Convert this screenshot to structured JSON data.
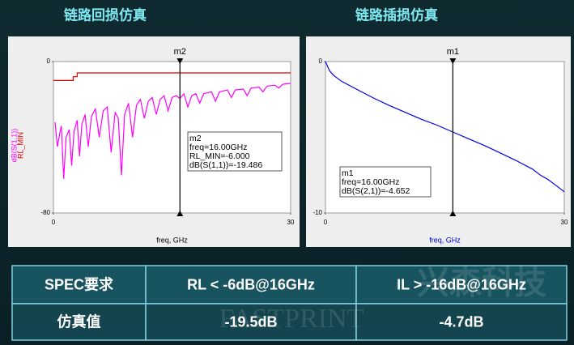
{
  "chart_data": [
    {
      "type": "line",
      "title": "链路回损仿真",
      "xlabel": "freq, GHz",
      "xlim": [
        0,
        30
      ],
      "xticks": [
        0,
        30
      ],
      "ylim": [
        -80,
        0
      ],
      "yticks": [
        -80,
        0
      ],
      "series": [
        {
          "name": "dB(S(1,1))",
          "color": "#ff00ff",
          "x": [
            0.2,
            0.5,
            0.8,
            1.0,
            1.3,
            1.6,
            2.0,
            2.3,
            2.6,
            3.0,
            3.3,
            3.6,
            4.0,
            4.4,
            4.8,
            5.3,
            5.8,
            6.3,
            6.8,
            7.3,
            7.8,
            8.2,
            8.6,
            9.0,
            9.5,
            10.0,
            10.5,
            11,
            11.5,
            12,
            12.5,
            13,
            13.5,
            14,
            14.5,
            15,
            15.5,
            16,
            16.5,
            17,
            17.5,
            18,
            18.5,
            19,
            20,
            20.5,
            21,
            22,
            22.5,
            23,
            24,
            24.5,
            25,
            26,
            26.5,
            27,
            28,
            28.5,
            29,
            30
          ],
          "values": [
            -32,
            -45,
            -38,
            -34,
            -62,
            -40,
            -36,
            -55,
            -37,
            -31,
            -50,
            -33,
            -28,
            -45,
            -29,
            -25,
            -40,
            -26,
            -24,
            -48,
            -27,
            -30,
            -60,
            -28,
            -22,
            -40,
            -23,
            -20,
            -30,
            -21,
            -19,
            -28,
            -20,
            -18,
            -26,
            -19,
            -18,
            -19.486,
            -17,
            -24,
            -18,
            -17,
            -22,
            -17,
            -16,
            -21,
            -16,
            -15,
            -19,
            -15,
            -14.5,
            -18,
            -14,
            -13.5,
            -16,
            -13,
            -12.5,
            -14,
            -12,
            -11.5
          ]
        },
        {
          "name": "RL_MIN",
          "color": "#dd0000",
          "x": [
            0,
            2.5,
            2.5,
            3,
            3,
            30
          ],
          "values": [
            -10,
            -10,
            -8,
            -8,
            -6,
            -6
          ]
        }
      ],
      "marker": {
        "label": "m2",
        "x": 16
      },
      "annotation": [
        "m2",
        "freq=16.00GHz",
        "RL_MIN=-6.000",
        "dB(S(1,1))=-19.486"
      ]
    },
    {
      "type": "line",
      "title": "链路插损仿真",
      "xlabel": "freq, GHz",
      "xlabel_color": "#0000cc",
      "xlim": [
        0,
        30
      ],
      "xticks": [
        0,
        30
      ],
      "ylim": [
        -10,
        0
      ],
      "yticks": [
        -10,
        0
      ],
      "series": [
        {
          "name": "dB(S(2,1))",
          "color": "#0000ee",
          "x": [
            0,
            0.5,
            1,
            2,
            4,
            6,
            8,
            10,
            12,
            14,
            16,
            18,
            20,
            22,
            24,
            26,
            27,
            28,
            29,
            30
          ],
          "values": [
            0,
            -0.6,
            -0.9,
            -1.3,
            -1.85,
            -2.4,
            -2.9,
            -3.35,
            -3.8,
            -4.2,
            -4.652,
            -5.1,
            -5.55,
            -6.05,
            -6.55,
            -7.1,
            -7.5,
            -7.8,
            -8.2,
            -8.6
          ]
        }
      ],
      "marker": {
        "label": "m1",
        "x": 16
      },
      "annotation": [
        "m1",
        "freq=16.00GHz",
        "dB(S(2,1))=-4.652"
      ]
    }
  ],
  "table": {
    "rows": [
      [
        "SPEC要求",
        "RL < -6dB@16GHz",
        "IL > -16dB@16GHz"
      ],
      [
        "仿真值",
        "-19.5dB",
        "-4.7dB"
      ]
    ]
  },
  "watermark": {
    "cn": "兴森科技",
    "en": "FASTPRINT"
  }
}
